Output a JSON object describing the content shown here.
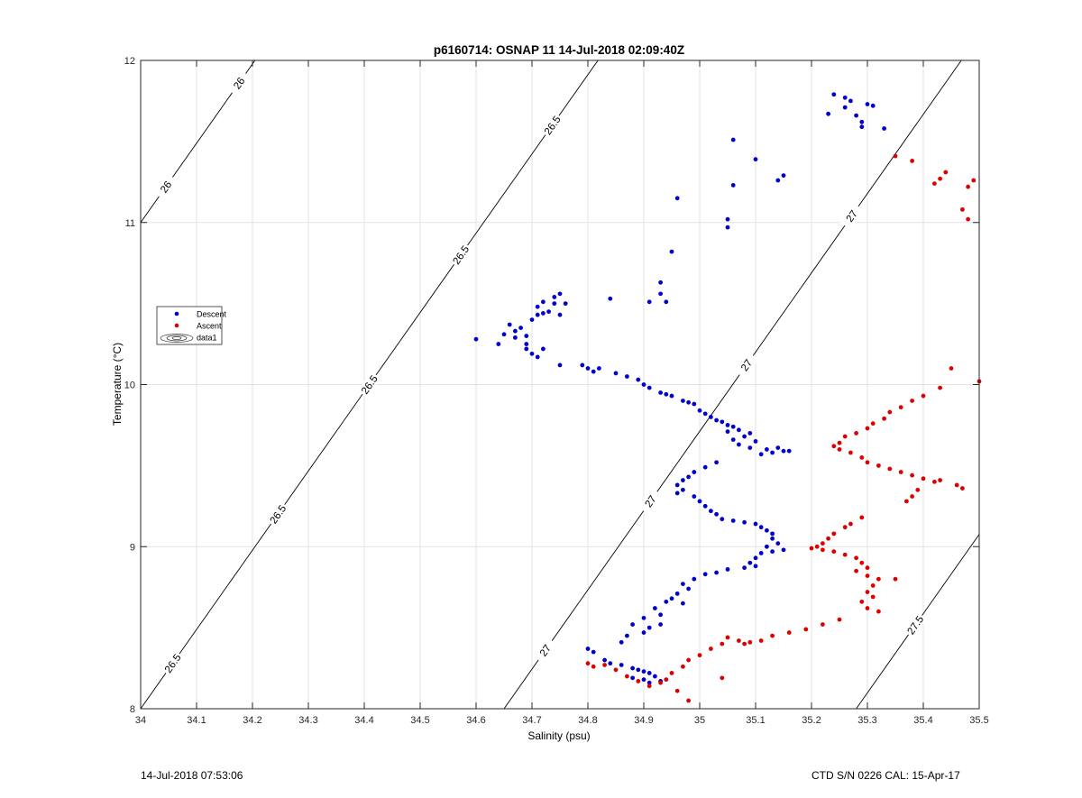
{
  "chart_data": {
    "type": "scatter",
    "title": "p6160714: OSNAP 11 14-Jul-2018 02:09:40Z",
    "xlabel": "Salinity (psu)",
    "ylabel": "Temperature (°C)",
    "xlim": [
      34,
      35.5
    ],
    "ylim": [
      8,
      12
    ],
    "xticks": [
      "34",
      "34.1",
      "34.2",
      "34.3",
      "34.4",
      "34.5",
      "34.6",
      "34.7",
      "34.8",
      "34.9",
      "35",
      "35.1",
      "35.2",
      "35.3",
      "35.4",
      "35.5"
    ],
    "yticks": [
      "8",
      "9",
      "10",
      "11",
      "12"
    ],
    "grid": true,
    "legend_position": "left, mid-height",
    "legend": [
      "Descent",
      "Ascent",
      "data1"
    ],
    "series": [
      {
        "name": "Descent",
        "color": "#0000cc",
        "points": [
          [
            35.24,
            11.79
          ],
          [
            35.26,
            11.77
          ],
          [
            35.27,
            11.75
          ],
          [
            35.23,
            11.67
          ],
          [
            35.26,
            11.71
          ],
          [
            35.28,
            11.66
          ],
          [
            35.3,
            11.73
          ],
          [
            35.31,
            11.72
          ],
          [
            35.29,
            11.62
          ],
          [
            35.29,
            11.59
          ],
          [
            35.33,
            11.58
          ],
          [
            35.06,
            11.51
          ],
          [
            35.1,
            11.39
          ],
          [
            35.15,
            11.29
          ],
          [
            35.14,
            11.26
          ],
          [
            35.06,
            11.23
          ],
          [
            34.96,
            11.15
          ],
          [
            35.05,
            11.02
          ],
          [
            35.05,
            10.97
          ],
          [
            34.95,
            10.82
          ],
          [
            34.84,
            10.53
          ],
          [
            34.91,
            10.51
          ],
          [
            34.93,
            10.56
          ],
          [
            34.93,
            10.63
          ],
          [
            34.94,
            10.51
          ],
          [
            34.6,
            10.28
          ],
          [
            34.64,
            10.25
          ],
          [
            34.65,
            10.31
          ],
          [
            34.66,
            10.37
          ],
          [
            34.67,
            10.33
          ],
          [
            34.67,
            10.29
          ],
          [
            34.68,
            10.35
          ],
          [
            34.69,
            10.3
          ],
          [
            34.69,
            10.25
          ],
          [
            34.7,
            10.4
          ],
          [
            34.71,
            10.43
          ],
          [
            34.71,
            10.48
          ],
          [
            34.72,
            10.51
          ],
          [
            34.72,
            10.44
          ],
          [
            34.73,
            10.45
          ],
          [
            34.74,
            10.5
          ],
          [
            34.74,
            10.54
          ],
          [
            34.75,
            10.56
          ],
          [
            34.75,
            10.43
          ],
          [
            34.76,
            10.5
          ],
          [
            34.69,
            10.22
          ],
          [
            34.7,
            10.19
          ],
          [
            34.71,
            10.17
          ],
          [
            34.72,
            10.22
          ],
          [
            34.75,
            10.12
          ],
          [
            34.79,
            10.12
          ],
          [
            34.8,
            10.1
          ],
          [
            34.81,
            10.08
          ],
          [
            34.82,
            10.1
          ],
          [
            34.85,
            10.07
          ],
          [
            34.87,
            10.05
          ],
          [
            34.89,
            10.03
          ],
          [
            34.9,
            10.0
          ],
          [
            34.91,
            9.98
          ],
          [
            34.93,
            9.95
          ],
          [
            34.94,
            9.94
          ],
          [
            34.95,
            9.93
          ],
          [
            34.97,
            9.9
          ],
          [
            34.98,
            9.89
          ],
          [
            34.99,
            9.88
          ],
          [
            35.0,
            9.84
          ],
          [
            35.01,
            9.82
          ],
          [
            35.02,
            9.8
          ],
          [
            35.03,
            9.78
          ],
          [
            35.04,
            9.77
          ],
          [
            35.05,
            9.75
          ],
          [
            35.06,
            9.74
          ],
          [
            35.05,
            9.71
          ],
          [
            35.07,
            9.72
          ],
          [
            35.08,
            9.68
          ],
          [
            35.06,
            9.66
          ],
          [
            35.07,
            9.63
          ],
          [
            35.09,
            9.7
          ],
          [
            35.1,
            9.65
          ],
          [
            35.09,
            9.61
          ],
          [
            35.11,
            9.57
          ],
          [
            35.12,
            9.6
          ],
          [
            35.13,
            9.58
          ],
          [
            35.15,
            9.59
          ],
          [
            35.16,
            9.59
          ],
          [
            35.14,
            9.61
          ],
          [
            35.03,
            9.52
          ],
          [
            35.01,
            9.49
          ],
          [
            34.99,
            9.46
          ],
          [
            34.98,
            9.43
          ],
          [
            34.97,
            9.41
          ],
          [
            34.96,
            9.38
          ],
          [
            34.96,
            9.33
          ],
          [
            34.97,
            9.35
          ],
          [
            34.99,
            9.31
          ],
          [
            35.0,
            9.28
          ],
          [
            35.01,
            9.25
          ],
          [
            35.02,
            9.22
          ],
          [
            35.03,
            9.2
          ],
          [
            35.04,
            9.17
          ],
          [
            35.06,
            9.16
          ],
          [
            35.08,
            9.15
          ],
          [
            35.1,
            9.14
          ],
          [
            35.11,
            9.12
          ],
          [
            35.12,
            9.1
          ],
          [
            35.13,
            9.08
          ],
          [
            35.13,
            9.05
          ],
          [
            35.14,
            9.02
          ],
          [
            35.12,
            9.0
          ],
          [
            35.13,
            8.97
          ],
          [
            35.15,
            8.98
          ],
          [
            35.11,
            8.96
          ],
          [
            35.1,
            8.93
          ],
          [
            35.09,
            8.9
          ],
          [
            35.1,
            8.88
          ],
          [
            35.08,
            8.87
          ],
          [
            35.05,
            8.86
          ],
          [
            35.03,
            8.84
          ],
          [
            35.01,
            8.83
          ],
          [
            34.99,
            8.8
          ],
          [
            34.97,
            8.77
          ],
          [
            34.98,
            8.74
          ],
          [
            34.96,
            8.71
          ],
          [
            34.95,
            8.68
          ],
          [
            34.94,
            8.66
          ],
          [
            34.97,
            8.65
          ],
          [
            34.92,
            8.62
          ],
          [
            34.93,
            8.58
          ],
          [
            34.9,
            8.56
          ],
          [
            34.93,
            8.52
          ],
          [
            34.91,
            8.5
          ],
          [
            34.88,
            8.52
          ],
          [
            34.9,
            8.47
          ],
          [
            34.87,
            8.45
          ],
          [
            34.86,
            8.41
          ],
          [
            34.8,
            8.37
          ],
          [
            34.81,
            8.35
          ],
          [
            34.83,
            8.3
          ],
          [
            34.84,
            8.28
          ],
          [
            34.86,
            8.27
          ],
          [
            34.88,
            8.25
          ],
          [
            34.89,
            8.24
          ],
          [
            34.9,
            8.23
          ],
          [
            34.91,
            8.22
          ],
          [
            34.92,
            8.2
          ],
          [
            34.9,
            8.18
          ],
          [
            34.88,
            8.19
          ],
          [
            34.91,
            8.16
          ],
          [
            34.93,
            8.17
          ]
        ]
      },
      {
        "name": "Ascent",
        "color": "#dd0000",
        "points": [
          [
            35.35,
            11.41
          ],
          [
            35.38,
            11.38
          ],
          [
            35.44,
            11.31
          ],
          [
            35.43,
            11.27
          ],
          [
            35.42,
            11.24
          ],
          [
            35.49,
            11.26
          ],
          [
            35.48,
            11.22
          ],
          [
            35.47,
            11.08
          ],
          [
            35.48,
            11.02
          ],
          [
            35.45,
            10.1
          ],
          [
            35.5,
            10.02
          ],
          [
            35.43,
            9.98
          ],
          [
            35.4,
            9.93
          ],
          [
            35.38,
            9.9
          ],
          [
            35.36,
            9.86
          ],
          [
            35.34,
            9.83
          ],
          [
            35.33,
            9.79
          ],
          [
            35.31,
            9.76
          ],
          [
            35.3,
            9.73
          ],
          [
            35.28,
            9.7
          ],
          [
            35.26,
            9.68
          ],
          [
            35.25,
            9.64
          ],
          [
            35.24,
            9.62
          ],
          [
            35.25,
            9.6
          ],
          [
            35.27,
            9.58
          ],
          [
            35.29,
            9.55
          ],
          [
            35.3,
            9.52
          ],
          [
            35.32,
            9.5
          ],
          [
            35.34,
            9.48
          ],
          [
            35.36,
            9.46
          ],
          [
            35.38,
            9.44
          ],
          [
            35.4,
            9.42
          ],
          [
            35.42,
            9.4
          ],
          [
            35.43,
            9.41
          ],
          [
            35.46,
            9.38
          ],
          [
            35.47,
            9.36
          ],
          [
            35.39,
            9.35
          ],
          [
            35.38,
            9.31
          ],
          [
            35.37,
            9.28
          ],
          [
            35.29,
            9.18
          ],
          [
            35.27,
            9.14
          ],
          [
            35.26,
            9.12
          ],
          [
            35.24,
            9.08
          ],
          [
            35.23,
            9.05
          ],
          [
            35.22,
            9.02
          ],
          [
            35.21,
            9.0
          ],
          [
            35.2,
            8.99
          ],
          [
            35.22,
            8.98
          ],
          [
            35.24,
            8.97
          ],
          [
            35.26,
            8.95
          ],
          [
            35.28,
            8.93
          ],
          [
            35.29,
            8.9
          ],
          [
            35.3,
            8.87
          ],
          [
            35.28,
            8.85
          ],
          [
            35.3,
            8.82
          ],
          [
            35.32,
            8.8
          ],
          [
            35.35,
            8.8
          ],
          [
            35.31,
            8.76
          ],
          [
            35.3,
            8.72
          ],
          [
            35.31,
            8.69
          ],
          [
            35.29,
            8.66
          ],
          [
            35.3,
            8.62
          ],
          [
            35.32,
            8.6
          ],
          [
            35.25,
            8.55
          ],
          [
            35.22,
            8.52
          ],
          [
            35.19,
            8.49
          ],
          [
            35.16,
            8.47
          ],
          [
            35.13,
            8.45
          ],
          [
            35.11,
            8.42
          ],
          [
            35.09,
            8.41
          ],
          [
            35.08,
            8.4
          ],
          [
            35.07,
            8.42
          ],
          [
            35.05,
            8.44
          ],
          [
            35.04,
            8.4
          ],
          [
            35.02,
            8.37
          ],
          [
            35.0,
            8.33
          ],
          [
            34.98,
            8.3
          ],
          [
            34.97,
            8.26
          ],
          [
            34.95,
            8.22
          ],
          [
            34.94,
            8.18
          ],
          [
            34.93,
            8.16
          ],
          [
            34.91,
            8.14
          ],
          [
            34.89,
            8.17
          ],
          [
            34.87,
            8.2
          ],
          [
            34.85,
            8.24
          ],
          [
            34.83,
            8.27
          ],
          [
            34.81,
            8.26
          ],
          [
            34.8,
            8.28
          ],
          [
            34.96,
            8.11
          ],
          [
            34.98,
            8.05
          ],
          [
            35.04,
            8.19
          ]
        ]
      }
    ],
    "isopycnals": [
      {
        "sigma": "26",
        "labels": [
          "26",
          "26"
        ]
      },
      {
        "sigma": "26.5",
        "labels": [
          "26.5",
          "26.5",
          "26.5",
          "26.5",
          "26.5"
        ]
      },
      {
        "sigma": "27",
        "labels": [
          "27",
          "27",
          "27",
          "27"
        ]
      },
      {
        "sigma": "27.5",
        "labels": [
          "27.5"
        ]
      }
    ]
  },
  "footer": {
    "left": "14-Jul-2018 07:53:06",
    "right": "CTD S/N 0226  CAL: 15-Apr-17"
  }
}
